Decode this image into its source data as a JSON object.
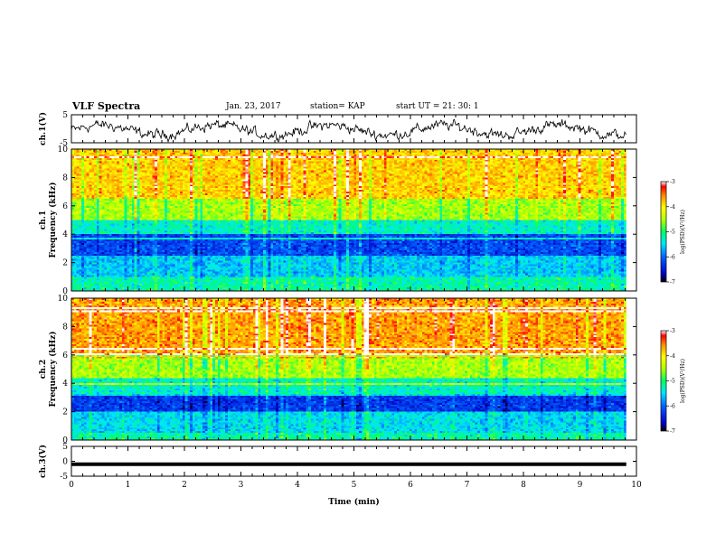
{
  "header": {
    "title": "VLF Spectra",
    "date": "Jan. 23, 2017",
    "station": "station= KAP",
    "start": "start  UT  =   21: 30: 1"
  },
  "chart_data": [
    {
      "type": "line",
      "panel": "ch1-waveform",
      "ylabel": "ch.1(V)",
      "ylim": [
        -5,
        5
      ],
      "yticks": [
        5,
        -5
      ],
      "xlim": [
        0,
        10
      ],
      "description_values": "noisy waveform oscillating roughly between -4 and 3 V"
    },
    {
      "type": "heatmap",
      "panel": "ch1-spectrogram",
      "ylabel": "ch.1",
      "ylabel2": "Frequency (kHz)",
      "ylim": [
        0,
        10
      ],
      "yticks": [
        0,
        2,
        4,
        6,
        8,
        10
      ],
      "xlim": [
        0,
        10
      ],
      "colorbar": {
        "label": "log(PSD)(V²/Hz)",
        "ticks": [
          -3,
          -4,
          -5,
          -6,
          -7
        ],
        "range": [
          -7,
          -3
        ]
      },
      "bands": [
        {
          "from": 0,
          "to": 1.0,
          "level": -5.2
        },
        {
          "from": 1.0,
          "to": 2.5,
          "level": -5.6
        },
        {
          "from": 2.5,
          "to": 4.0,
          "level": -6.2
        },
        {
          "from": 4.0,
          "to": 5.0,
          "level": -5.3
        },
        {
          "from": 5.0,
          "to": 6.5,
          "level": -4.5
        },
        {
          "from": 6.5,
          "to": 10,
          "level": -3.8
        }
      ]
    },
    {
      "type": "heatmap",
      "panel": "ch2-spectrogram",
      "ylabel": "ch.2",
      "ylabel2": "Frequency (kHz)",
      "ylim": [
        0,
        10
      ],
      "yticks": [
        0,
        2,
        4,
        6,
        8,
        10
      ],
      "xlim": [
        0,
        10
      ],
      "colorbar": {
        "label": "log(PSD)(V²/Hz)",
        "ticks": [
          -3,
          -4,
          -5,
          -6,
          -7
        ],
        "range": [
          -7,
          -3
        ]
      },
      "bands": [
        {
          "from": 0,
          "to": 0.5,
          "level": -5.2
        },
        {
          "from": 0.5,
          "to": 2.0,
          "level": -5.5
        },
        {
          "from": 2.0,
          "to": 3.2,
          "level": -6.3
        },
        {
          "from": 3.2,
          "to": 4.5,
          "level": -5.3
        },
        {
          "from": 4.5,
          "to": 6.0,
          "level": -4.5
        },
        {
          "from": 6.0,
          "to": 10,
          "level": -3.6
        }
      ]
    },
    {
      "type": "line",
      "panel": "ch3-waveform",
      "ylabel": "ch.3(V)",
      "ylim": [
        -5,
        5
      ],
      "yticks": [
        5,
        0,
        -5
      ],
      "xlim": [
        0,
        10
      ],
      "constant_value": -1,
      "xlabel": "Time (min)",
      "xticks": [
        0,
        1,
        2,
        3,
        4,
        5,
        6,
        7,
        8,
        9,
        10
      ]
    }
  ],
  "colors": {
    "axis": "#000000",
    "trace": "#000000"
  }
}
